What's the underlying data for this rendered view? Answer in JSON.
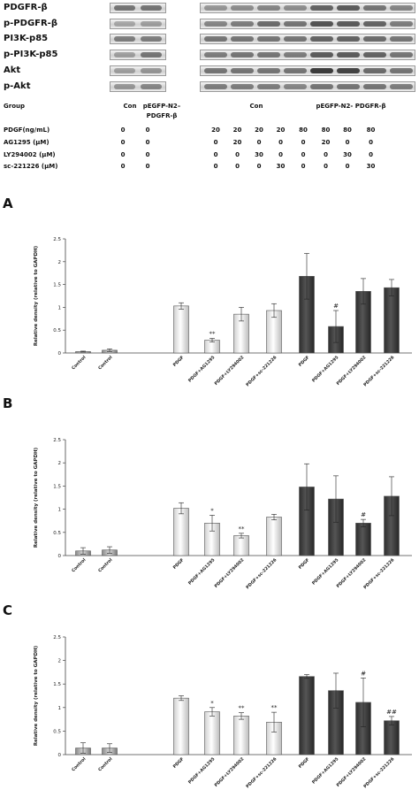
{
  "blot": {
    "proteins": [
      "PDGFR-β",
      "p-PDGFR-β",
      "PI3K-p85",
      "p-PI3K-p85",
      "Akt",
      "p-Akt"
    ],
    "group_label": "Group",
    "group_con": "Con",
    "group_pegfp": "pEGFP-N2–",
    "group_pegfp2": "PDGFR-β",
    "group_right_con": "Con",
    "group_right_pegfp": "pEGFP-N2- PDGFR-β",
    "rows": [
      {
        "label": "PDGF(ng/mL)",
        "values": [
          "0",
          "0",
          "20",
          "20",
          "20",
          "20",
          "80",
          "80",
          "80",
          "80"
        ]
      },
      {
        "label": "AG1295 (μM)",
        "values": [
          "0",
          "0",
          "0",
          "20",
          "0",
          "0",
          "0",
          "20",
          "0",
          "0"
        ]
      },
      {
        "label": "LY294002 (μM)",
        "values": [
          "0",
          "0",
          "0",
          "0",
          "30",
          "0",
          "0",
          "0",
          "30",
          "0"
        ]
      },
      {
        "label": "sc-221226 (μM)",
        "values": [
          "0",
          "0",
          "0",
          "0",
          "0",
          "30",
          "0",
          "0",
          "0",
          "30"
        ]
      }
    ]
  },
  "colors": {
    "light_bar": "#ffffff",
    "dark_bar": "#555555",
    "axis": "#444444"
  },
  "chart_data": [
    {
      "type": "bar",
      "panel": "A",
      "ylabel": "Relative density (relative to GAPDH)",
      "ylim": [
        0,
        2.5
      ],
      "yticks": [
        "0",
        "0.5",
        "1",
        "1.5",
        "2",
        "2.5"
      ],
      "categories": [
        "Control",
        "Control",
        "PDGF",
        "PDGF+AG1295",
        "PDGF+LY294002",
        "PDGF+sc-221226",
        "PDGF",
        "PDGF+AG1295",
        "PDGF+LY294002",
        "PDGF+sc-221226"
      ],
      "values": [
        0.03,
        0.06,
        1.03,
        0.28,
        0.85,
        0.93,
        1.68,
        0.58,
        1.35,
        1.43
      ],
      "errors": [
        0.01,
        0.03,
        0.07,
        0.04,
        0.15,
        0.15,
        0.5,
        0.35,
        0.28,
        0.18
      ],
      "annotations": [
        "",
        "",
        "",
        "**",
        "",
        "",
        "",
        "#",
        "",
        ""
      ]
    },
    {
      "type": "bar",
      "panel": "B",
      "ylabel": "Relative density (relative to GAPDH)",
      "ylim": [
        0,
        2.5
      ],
      "yticks": [
        "0",
        "0.5",
        "1",
        "1.5",
        "2",
        "2.5"
      ],
      "categories": [
        "Control",
        "Control",
        "PDGF",
        "PDGF+AG1295",
        "PDGF+LY294002",
        "PDGF+sc-221226",
        "PDGF",
        "PDGF+AG1295",
        "PDGF+LY294002",
        "PDGF+sc-221226"
      ],
      "values": [
        0.1,
        0.12,
        1.02,
        0.7,
        0.43,
        0.83,
        1.48,
        1.22,
        0.7,
        1.28
      ],
      "errors": [
        0.07,
        0.07,
        0.12,
        0.17,
        0.05,
        0.06,
        0.5,
        0.5,
        0.08,
        0.42
      ],
      "annotations": [
        "",
        "",
        "",
        "*",
        "**",
        "",
        "",
        "",
        "#",
        ""
      ]
    },
    {
      "type": "bar",
      "panel": "C",
      "ylabel": "Relative density (relative to GAPDH)",
      "ylim": [
        0,
        2.5
      ],
      "yticks": [
        "0",
        "0.5",
        "1",
        "1.5",
        "2",
        "2.5"
      ],
      "categories": [
        "Control",
        "Control",
        "PDGF",
        "PDGF+AG1295",
        "PDGF+LY294002",
        "PDGF+sc-221226",
        "PDGF",
        "PDGF+AG1295",
        "PDGF+LY294002",
        "PDGF+sc-221226"
      ],
      "values": [
        0.14,
        0.14,
        1.2,
        0.91,
        0.82,
        0.69,
        1.66,
        1.36,
        1.11,
        0.72
      ],
      "errors": [
        0.11,
        0.09,
        0.05,
        0.09,
        0.07,
        0.21,
        0.04,
        0.37,
        0.52,
        0.09
      ],
      "annotations": [
        "",
        "",
        "",
        "*",
        "**",
        "**",
        "",
        "",
        "#",
        "##"
      ]
    }
  ]
}
